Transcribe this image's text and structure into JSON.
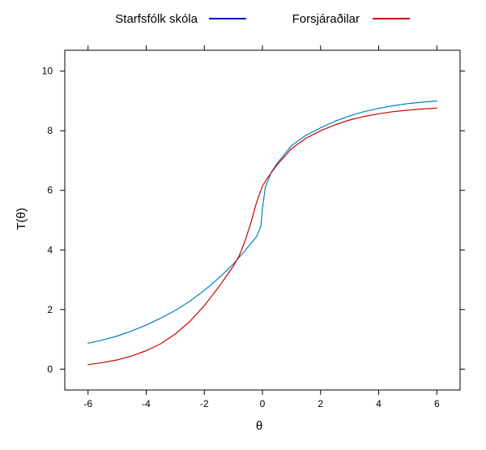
{
  "chart_data": {
    "type": "line",
    "title": "",
    "xlabel": "θ",
    "ylabel": "T(θ)",
    "xlim": [
      -6.8,
      6.8
    ],
    "ylim": [
      -0.7,
      10.7
    ],
    "x_ticks": [
      -6,
      -4,
      -2,
      0,
      2,
      4,
      6
    ],
    "x_tick_labels": [
      "-6",
      "-4",
      "-2",
      "0",
      "2",
      "4",
      "6"
    ],
    "y_ticks": [
      0,
      2,
      4,
      6,
      8,
      10
    ],
    "y_tick_labels": [
      "0",
      "2",
      "4",
      "6",
      "8",
      "10"
    ],
    "grid": false,
    "legend_position": "top",
    "legend": [
      {
        "name": "Starfsfólk skóla",
        "color": "#0000cc"
      },
      {
        "name": "Forsjáraðilar",
        "color": "#cc0000"
      }
    ],
    "series": [
      {
        "name": "Starfsfólk skóla",
        "color": "#0080c0",
        "x": [
          -6,
          -5.5,
          -5,
          -4.5,
          -4,
          -3.5,
          -3,
          -2.5,
          -2,
          -1.5,
          -1,
          -0.7,
          -0.4,
          -0.2,
          -0.05,
          0,
          0.1,
          0.3,
          0.5,
          1,
          1.5,
          2,
          2.5,
          3,
          3.5,
          4,
          4.5,
          5,
          5.5,
          6
        ],
        "y": [
          0.87,
          0.98,
          1.11,
          1.28,
          1.48,
          1.71,
          1.97,
          2.28,
          2.64,
          3.06,
          3.53,
          3.86,
          4.21,
          4.45,
          4.8,
          5.4,
          6.1,
          6.6,
          6.9,
          7.5,
          7.85,
          8.1,
          8.32,
          8.5,
          8.64,
          8.75,
          8.84,
          8.91,
          8.96,
          9.0
        ]
      },
      {
        "name": "Forsjáraðilar",
        "color": "#cc0000",
        "x": [
          -6,
          -5.5,
          -5,
          -4.5,
          -4,
          -3.5,
          -3,
          -2.5,
          -2,
          -1.5,
          -1,
          -0.8,
          -0.6,
          -0.4,
          -0.2,
          0,
          0.2,
          0.5,
          1,
          1.5,
          2,
          2.5,
          3,
          3.5,
          4,
          4.5,
          5,
          5.5,
          6
        ],
        "y": [
          0.15,
          0.22,
          0.31,
          0.44,
          0.62,
          0.85,
          1.18,
          1.6,
          2.13,
          2.76,
          3.46,
          3.8,
          4.3,
          4.9,
          5.6,
          6.15,
          6.45,
          6.85,
          7.4,
          7.75,
          8.0,
          8.2,
          8.36,
          8.48,
          8.57,
          8.64,
          8.69,
          8.73,
          8.76
        ]
      }
    ]
  }
}
